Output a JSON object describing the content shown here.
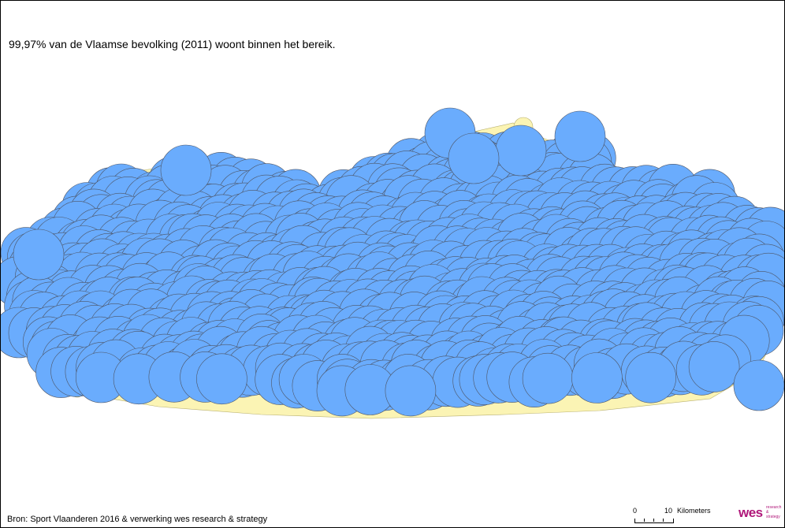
{
  "title": "99,97% van de Vlaamse bevolking (2011) woont binnen het bereik.",
  "source": "Bron: Sport Vlaanderen 2016 & verwerking wes research & strategy",
  "scale_bar": {
    "start_label": "0",
    "end_label": "10",
    "unit_label": "Kilometers"
  },
  "logo": {
    "main": "wes",
    "sub_lines": [
      "research",
      "&",
      "strategy"
    ]
  },
  "colors": {
    "circle_fill": "#6aacfd",
    "circle_stroke": "#4d5566",
    "region_fill": "#fbf4b4"
  },
  "icons": [
    "logo-mark"
  ]
}
